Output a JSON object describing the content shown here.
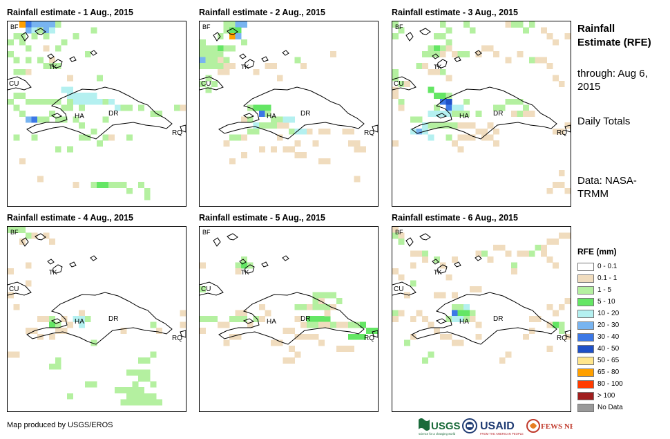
{
  "panels": [
    {
      "title": "Rainfall estimate - 1 Aug., 2015"
    },
    {
      "title": "Rainfall estimate - 2 Aug., 2015"
    },
    {
      "title": "Rainfall estimate - 3 Aug., 2015"
    },
    {
      "title": "Rainfall estimate - 4 Aug., 2015"
    },
    {
      "title": "Rainfall estimate - 5 Aug., 2015"
    },
    {
      "title": "Rainfall estimate - 6 Aug., 2015"
    }
  ],
  "map_labels": {
    "bf": "BF",
    "tk": "TK",
    "cu": "CU",
    "ha": "HA",
    "dr": "DR",
    "rq": "RQ"
  },
  "sidebar": {
    "title": "Rainfall Estimate (RFE)",
    "through": "through: Aug 6, 2015",
    "period": "Daily Totals",
    "data_source": "Data: NASA-TRMM"
  },
  "legend": {
    "title": "RFE (mm)",
    "items": [
      {
        "label": "0 - 0.1",
        "color": "#ffffff"
      },
      {
        "label": "0.1 - 1",
        "color": "#f0dcbe"
      },
      {
        "label": "1 - 5",
        "color": "#b4f0a0"
      },
      {
        "label": "5 - 10",
        "color": "#64e664"
      },
      {
        "label": "10 - 20",
        "color": "#b4f0f0"
      },
      {
        "label": "20 - 30",
        "color": "#78b4f0"
      },
      {
        "label": "30 - 40",
        "color": "#3c78e6"
      },
      {
        "label": "40 - 50",
        "color": "#1e50c8"
      },
      {
        "label": "50 - 65",
        "color": "#ffe68c"
      },
      {
        "label": "65 - 80",
        "color": "#ffa000"
      },
      {
        "label": "80 - 100",
        "color": "#ff3c00"
      },
      {
        "label": "> 100",
        "color": "#a01e1e"
      },
      {
        "label": "No Data",
        "color": "#999999"
      }
    ]
  },
  "footer": {
    "credit": "Map produced by USGS/EROS"
  },
  "logos": {
    "usgs": "USGS",
    "usgs_tagline": "science for a changing world",
    "usaid": "USAID",
    "usaid_tagline": "FROM THE AMERICAN PEOPLE",
    "fewsnet": "FEWS NET"
  }
}
